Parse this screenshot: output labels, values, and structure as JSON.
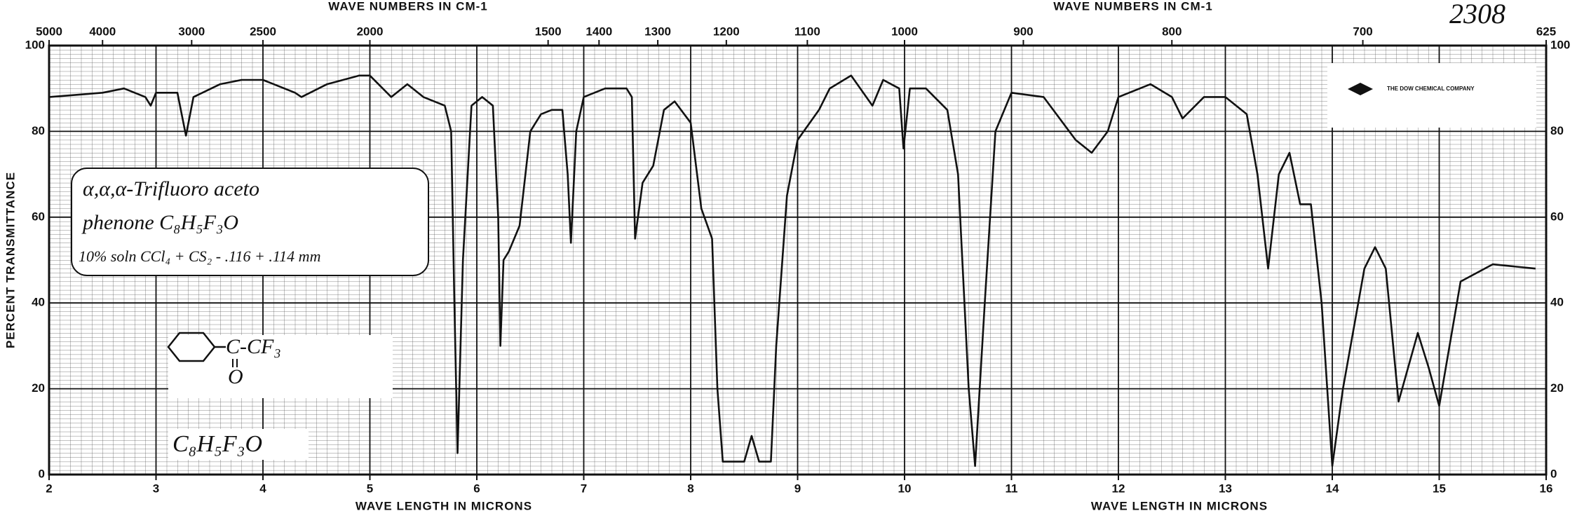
{
  "chart_data": {
    "type": "line",
    "xlabel": "WAVE LENGTH IN MICRONS",
    "x2label": "WAVE NUMBERS IN CM-1",
    "ylabel": "PERCENT TRANSMITTANCE",
    "xlim": [
      2,
      16
    ],
    "xticks": [
      2,
      3,
      4,
      5,
      6,
      7,
      8,
      9,
      10,
      11,
      12,
      13,
      14,
      15,
      16
    ],
    "x2ticks": [
      5000,
      4000,
      3000,
      2500,
      2000,
      1500,
      1400,
      1300,
      1200,
      1100,
      1000,
      900,
      800,
      700,
      625
    ],
    "ylim": [
      0,
      100
    ],
    "yticks": [
      0,
      20,
      40,
      60,
      80,
      100
    ],
    "grid": true,
    "x": [
      2.0,
      2.5,
      2.7,
      2.9,
      2.95,
      3.0,
      3.2,
      3.28,
      3.35,
      3.6,
      3.8,
      4.0,
      4.3,
      4.36,
      4.6,
      4.9,
      5.0,
      5.2,
      5.35,
      5.5,
      5.7,
      5.76,
      5.79,
      5.82,
      5.87,
      5.95,
      6.05,
      6.15,
      6.2,
      6.22,
      6.25,
      6.3,
      6.4,
      6.5,
      6.6,
      6.7,
      6.8,
      6.85,
      6.88,
      6.93,
      7.0,
      7.2,
      7.4,
      7.45,
      7.48,
      7.55,
      7.65,
      7.75,
      7.85,
      8.0,
      8.1,
      8.2,
      8.25,
      8.3,
      8.5,
      8.57,
      8.64,
      8.75,
      8.8,
      8.9,
      9.0,
      9.2,
      9.3,
      9.5,
      9.7,
      9.8,
      9.95,
      9.99,
      10.05,
      10.2,
      10.4,
      10.5,
      10.6,
      10.66,
      10.75,
      10.85,
      11.0,
      11.3,
      11.6,
      11.75,
      11.9,
      12.0,
      12.3,
      12.5,
      12.6,
      12.8,
      13.0,
      13.2,
      13.3,
      13.4,
      13.5,
      13.6,
      13.7,
      13.8,
      13.9,
      14.0,
      14.1,
      14.3,
      14.4,
      14.5,
      14.62,
      14.8,
      14.9,
      15.0,
      15.2,
      15.5,
      15.9
    ],
    "series": [
      {
        "color": "#111111",
        "values": [
          88,
          89,
          90,
          88,
          86,
          89,
          89,
          79,
          88,
          91,
          92,
          92,
          89,
          88,
          91,
          93,
          93,
          88,
          91,
          88,
          86,
          80,
          40,
          5,
          50,
          86,
          88,
          86,
          60,
          30,
          50,
          52,
          58,
          80,
          84,
          85,
          85,
          70,
          54,
          80,
          88,
          90,
          90,
          88,
          55,
          68,
          72,
          85,
          87,
          82,
          62,
          55,
          20,
          3,
          3,
          9,
          3,
          3,
          30,
          65,
          78,
          85,
          90,
          93,
          86,
          92,
          90,
          76,
          90,
          90,
          85,
          70,
          20,
          2,
          40,
          80,
          89,
          88,
          78,
          75,
          80,
          88,
          91,
          88,
          83,
          88,
          88,
          84,
          70,
          48,
          70,
          75,
          63,
          63,
          40,
          2,
          20,
          48,
          53,
          48,
          17,
          33,
          25,
          16,
          45,
          49,
          48
        ]
      }
    ],
    "annotations": [
      "2308",
      "α,α,α-Trifluoro aceto",
      "phenone  C₈H₅F₃O",
      "10% soln CCl₄ + CS₂ - .116 + .114 mm",
      "C-CF₃",
      "O",
      "C₈H₅F₃O",
      "THE DOW CHEMICAL COMPANY"
    ]
  }
}
